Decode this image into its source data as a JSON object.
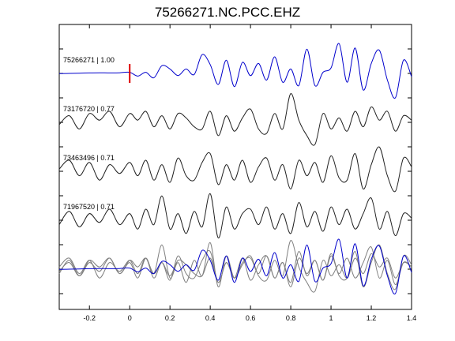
{
  "chart_data": {
    "type": "line",
    "title": "75266271.NC.PCC.EHZ",
    "xlabel": "",
    "ylabel": "",
    "xlim": [
      -0.35,
      1.4
    ],
    "xticks": [
      -0.2,
      0,
      0.2,
      0.4,
      0.6,
      0.8,
      1,
      1.2,
      1.4
    ],
    "xtick_labels": [
      "-0.2",
      "0",
      "0.2",
      "0.4",
      "0.6",
      "0.8",
      "1",
      "1.2",
      "1.4"
    ],
    "pick_time": 0,
    "grid": false,
    "legend": "none",
    "colors": {
      "master": "#0000cc",
      "trace": "#222222",
      "overlay": "#808080",
      "pick": "#dd0000",
      "axis": "#000000"
    },
    "traces": [
      {
        "label": "75266271 | 1.00",
        "color": "#0000cc",
        "t": [
          -0.35,
          -0.3,
          -0.25,
          -0.2,
          -0.15,
          -0.1,
          -0.05,
          0,
          0.04,
          0.08,
          0.12,
          0.16,
          0.2,
          0.24,
          0.28,
          0.32,
          0.36,
          0.4,
          0.44,
          0.48,
          0.52,
          0.56,
          0.6,
          0.64,
          0.68,
          0.72,
          0.76,
          0.8,
          0.84,
          0.88,
          0.92,
          0.96,
          1.0,
          1.04,
          1.08,
          1.12,
          1.16,
          1.2,
          1.24,
          1.28,
          1.32,
          1.36,
          1.4
        ],
        "v": [
          -0.01,
          0,
          0.01,
          0.02,
          0.03,
          0.02,
          0.03,
          0.05,
          -0.12,
          0.05,
          -0.2,
          0.35,
          0.2,
          -0.1,
          0.2,
          -0.05,
          0.85,
          0.4,
          -0.5,
          0.6,
          -0.6,
          0.5,
          -0.1,
          0.45,
          -0.3,
          0.75,
          -0.4,
          0.2,
          -0.55,
          1.1,
          -0.55,
          0.05,
          0.25,
          1.35,
          -0.4,
          1.15,
          -0.75,
          0.45,
          1.05,
          -0.3,
          -1.1,
          0.6,
          -0.15
        ]
      },
      {
        "label": "73176720 | 0.77",
        "color": "#222222",
        "t": [
          -0.35,
          -0.3,
          -0.25,
          -0.2,
          -0.15,
          -0.1,
          -0.05,
          0,
          0.04,
          0.08,
          0.12,
          0.16,
          0.2,
          0.24,
          0.28,
          0.32,
          0.36,
          0.4,
          0.44,
          0.48,
          0.52,
          0.56,
          0.6,
          0.64,
          0.68,
          0.72,
          0.76,
          0.8,
          0.84,
          0.88,
          0.92,
          0.96,
          1.0,
          1.04,
          1.08,
          1.12,
          1.16,
          1.2,
          1.24,
          1.28,
          1.32,
          1.36,
          1.4
        ],
        "v": [
          -0.1,
          0.3,
          -0.3,
          0.4,
          0.1,
          0.5,
          -0.2,
          0.4,
          0.1,
          0.5,
          -0.2,
          0.3,
          -0.3,
          0.4,
          0.2,
          -0.2,
          -0.3,
          0.5,
          -0.6,
          0.3,
          -0.4,
          0.2,
          0.6,
          -0.3,
          -0.5,
          0.4,
          -0.3,
          1.3,
          0.1,
          -0.6,
          -1.0,
          0.4,
          -0.3,
          0.2,
          -0.4,
          0.5,
          -0.2,
          0.7,
          0.1,
          0.5,
          -0.4,
          0.3,
          0.1
        ]
      },
      {
        "label": "73463496 | 0.71",
        "color": "#222222",
        "t": [
          -0.35,
          -0.3,
          -0.25,
          -0.2,
          -0.15,
          -0.1,
          -0.05,
          0,
          0.04,
          0.08,
          0.12,
          0.16,
          0.2,
          0.24,
          0.28,
          0.32,
          0.36,
          0.4,
          0.44,
          0.48,
          0.52,
          0.56,
          0.6,
          0.64,
          0.68,
          0.72,
          0.76,
          0.8,
          0.84,
          0.88,
          0.92,
          0.96,
          1.0,
          1.04,
          1.08,
          1.12,
          1.16,
          1.2,
          1.24,
          1.28,
          1.32,
          1.36,
          1.4
        ],
        "v": [
          0.1,
          0.5,
          -0.2,
          0.4,
          -0.4,
          0.3,
          -0.1,
          0.4,
          -0.2,
          0.5,
          -0.4,
          0.3,
          -0.5,
          0.6,
          -0.2,
          -0.4,
          0.4,
          0.8,
          -0.6,
          0.3,
          -0.4,
          0.5,
          -0.5,
          0.2,
          0.6,
          -0.4,
          0.3,
          -0.8,
          0.5,
          -0.2,
          0.4,
          -0.5,
          0.7,
          -0.3,
          -0.4,
          0.8,
          -0.8,
          0.3,
          1.1,
          -0.2,
          -0.9,
          0.6,
          0.2
        ]
      },
      {
        "label": "71967520 | 0.71",
        "color": "#222222",
        "t": [
          -0.35,
          -0.3,
          -0.25,
          -0.2,
          -0.15,
          -0.1,
          -0.05,
          0,
          0.04,
          0.08,
          0.12,
          0.16,
          0.2,
          0.24,
          0.28,
          0.32,
          0.36,
          0.4,
          0.44,
          0.48,
          0.52,
          0.56,
          0.6,
          0.64,
          0.68,
          0.72,
          0.76,
          0.8,
          0.84,
          0.88,
          0.92,
          0.96,
          1.0,
          1.04,
          1.08,
          1.12,
          1.16,
          1.2,
          1.24,
          1.28,
          1.32,
          1.36,
          1.4
        ],
        "v": [
          -0.2,
          0.4,
          -0.3,
          0.3,
          -0.1,
          0.5,
          -0.2,
          0.3,
          -0.4,
          0.5,
          -0.2,
          1.1,
          -0.4,
          0.3,
          -0.6,
          0.4,
          -0.3,
          1.2,
          -0.8,
          0.6,
          -0.4,
          0.3,
          0.5,
          -0.2,
          0.6,
          -0.4,
          0.3,
          -0.6,
          0.8,
          -0.3,
          0.4,
          -0.5,
          0.6,
          -0.2,
          0.5,
          -0.4,
          0.3,
          1.0,
          -0.4,
          0.4,
          -0.7,
          0.3,
          0.1
        ]
      }
    ]
  }
}
